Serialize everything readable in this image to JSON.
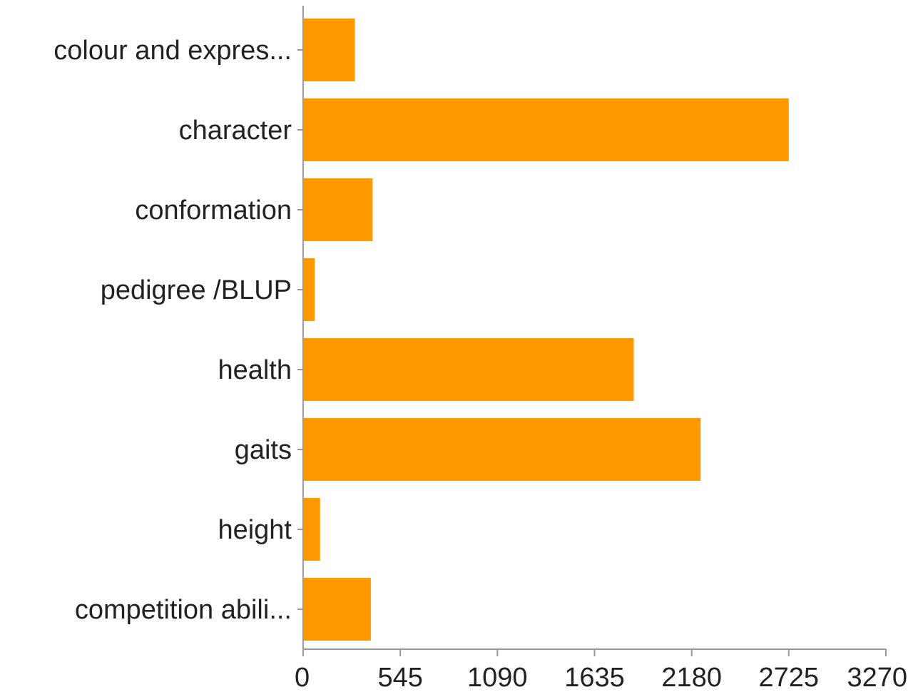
{
  "chart_data": {
    "type": "bar",
    "orientation": "horizontal",
    "categories": [
      "colour and expres...",
      "character",
      "conformation",
      "pedigree /BLUP",
      "health",
      "gaits",
      "height",
      "competition abili..."
    ],
    "values": [
      290,
      2725,
      390,
      65,
      1855,
      2230,
      95,
      380
    ],
    "xticks": [
      "0",
      "545",
      "1090",
      "1635",
      "2180",
      "2725",
      "3270"
    ],
    "xlim": [
      0,
      3270
    ],
    "grid": false,
    "colors": {
      "bar": "#ff9900",
      "axis": "#999999",
      "text": "#222222"
    }
  }
}
